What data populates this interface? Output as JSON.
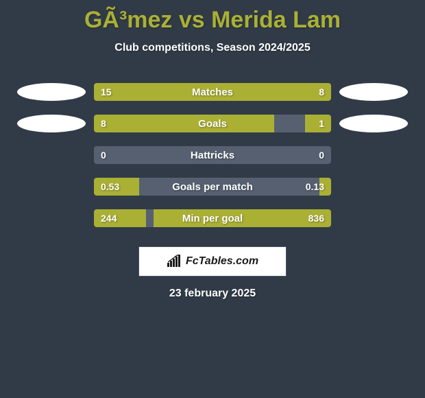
{
  "colors": {
    "page_bg": "#313b47",
    "title_color": "#aab034",
    "subtitle_color": "#ffffff",
    "bar_bg": "#566070",
    "bar_left_fill": "#aab034",
    "bar_right_fill": "#aab034",
    "bar_label_color": "#ffffff",
    "bar_value_color": "#ffffff",
    "ellipse_color": "#ffffff",
    "watermark_bg": "#ffffff",
    "watermark_border": "#4a5462",
    "watermark_text": "#1b1b1b",
    "watermark_icon": "#1b1b1b",
    "date_color": "#ffffff"
  },
  "header": {
    "title": "GÃ³mez vs Merida Lam",
    "subtitle": "Club competitions, Season 2024/2025"
  },
  "stats": [
    {
      "label": "Matches",
      "left_value": "15",
      "right_value": "8",
      "left_pct": 65,
      "right_pct": 35,
      "show_left_ellipse": true,
      "show_right_ellipse": true
    },
    {
      "label": "Goals",
      "left_value": "8",
      "right_value": "1",
      "left_pct": 76,
      "right_pct": 11,
      "show_left_ellipse": true,
      "show_right_ellipse": true
    },
    {
      "label": "Hattricks",
      "left_value": "0",
      "right_value": "0",
      "left_pct": 0,
      "right_pct": 0,
      "show_left_ellipse": false,
      "show_right_ellipse": false
    },
    {
      "label": "Goals per match",
      "left_value": "0.53",
      "right_value": "0.13",
      "left_pct": 19,
      "right_pct": 5,
      "show_left_ellipse": false,
      "show_right_ellipse": false
    },
    {
      "label": "Min per goal",
      "left_value": "244",
      "right_value": "836",
      "left_pct": 22,
      "right_pct": 75,
      "show_left_ellipse": false,
      "show_right_ellipse": false
    }
  ],
  "watermark": {
    "text": "FcTables.com"
  },
  "footer": {
    "date": "23 february 2025"
  }
}
